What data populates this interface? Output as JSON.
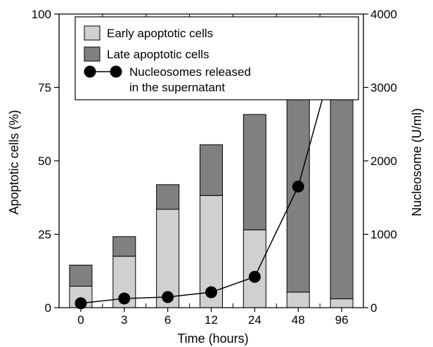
{
  "chart_data": {
    "type": "bar",
    "stacked": true,
    "categories": [
      "0",
      "3",
      "6",
      "12",
      "24",
      "48",
      "96"
    ],
    "series": [
      {
        "name": "Early apoptotic cells",
        "axis": "left",
        "color": "#d0d0d0",
        "values": [
          7.3,
          17.5,
          33.5,
          38.2,
          26.5,
          5.3,
          3.0
        ]
      },
      {
        "name": "Late apoptotic cells",
        "axis": "left",
        "color": "#808080",
        "values": [
          7.2,
          6.7,
          8.4,
          17.3,
          39.3,
          74.2,
          81.0
        ]
      }
    ],
    "line": {
      "name_lines": [
        "Nucleosomes released",
        "in the supernatant"
      ],
      "axis": "right",
      "values": [
        60,
        125,
        145,
        210,
        420,
        1650,
        3790
      ]
    },
    "xlabel": "Time (hours)",
    "ylabel": "Apoptotic cells (%)",
    "y2label": "Nucleosome (U/ml)",
    "ylim": [
      0,
      100
    ],
    "y2lim": [
      0,
      4000
    ],
    "yticks": [
      0,
      25,
      50,
      75,
      100
    ],
    "y2ticks": [
      0,
      1000,
      2000,
      3000,
      4000
    ],
    "grid": false,
    "legend_position": "top-left"
  }
}
